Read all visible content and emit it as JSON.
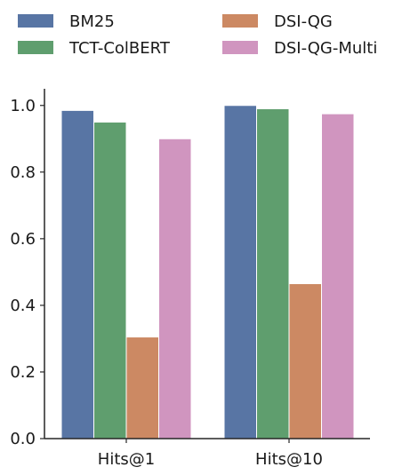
{
  "chart_data": {
    "type": "bar",
    "categories": [
      "Hits@1",
      "Hits@10"
    ],
    "series": [
      {
        "name": "BM25",
        "values": [
          0.985,
          1.0
        ],
        "color": "#5875a4"
      },
      {
        "name": "TCT-ColBERT",
        "values": [
          0.95,
          0.99
        ],
        "color": "#5f9e6e"
      },
      {
        "name": "DSI-QG",
        "values": [
          0.305,
          0.465
        ],
        "color": "#cc8963"
      },
      {
        "name": "DSI-QG-Multi",
        "values": [
          0.9,
          0.975
        ],
        "color": "#d095bf"
      }
    ],
    "ylim": [
      0,
      1.05
    ],
    "yticks": [
      0.0,
      0.2,
      0.4,
      0.6,
      0.8,
      1.0
    ],
    "ytick_labels": [
      "0.0",
      "0.2",
      "0.4",
      "0.6",
      "0.8",
      "1.0"
    ],
    "grid": false,
    "legend_position": "top, two columns",
    "title": "",
    "xlabel": "",
    "ylabel": ""
  }
}
